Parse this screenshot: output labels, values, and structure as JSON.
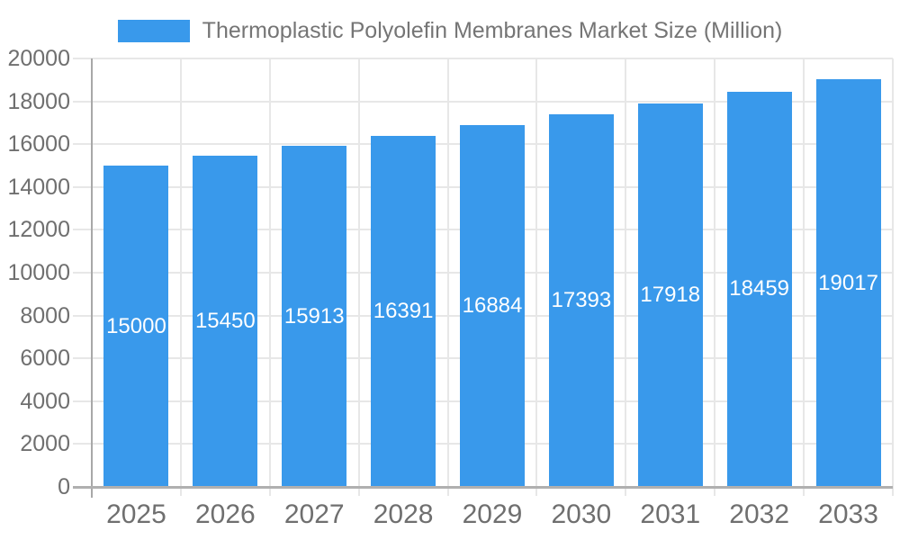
{
  "legend": {
    "label": "Thermoplastic Polyolefin Membranes Market Size (Million)"
  },
  "chart_data": {
    "type": "bar",
    "title": "Thermoplastic Polyolefin Membranes Market Size (Million)",
    "categories": [
      "2025",
      "2026",
      "2027",
      "2028",
      "2029",
      "2030",
      "2031",
      "2032",
      "2033"
    ],
    "series": [
      {
        "name": "Thermoplastic Polyolefin Membranes Market Size (Million)",
        "values": [
          15000,
          15450,
          15913,
          16391,
          16884,
          17393,
          17918,
          18459,
          19017
        ],
        "color": "#3999EB"
      }
    ],
    "xlabel": "",
    "ylabel": "",
    "ylim": [
      0,
      20000
    ],
    "yticks": [
      0,
      2000,
      4000,
      6000,
      8000,
      10000,
      12000,
      14000,
      16000,
      18000,
      20000
    ],
    "grid": true,
    "legend_position": "top",
    "value_labels": {
      "visible": true,
      "position": "inside-middle",
      "color": "#ffffff"
    }
  },
  "colors": {
    "bar": "#3999EB",
    "grid_line": "#e7e7e7",
    "axis_line_x": "#b0b0b0",
    "axis_line_y": "#a8a8a8",
    "tick_text": "#6f6f6f",
    "legend_text": "#757575",
    "value_label_text": "#ffffff",
    "background": "#ffffff"
  }
}
